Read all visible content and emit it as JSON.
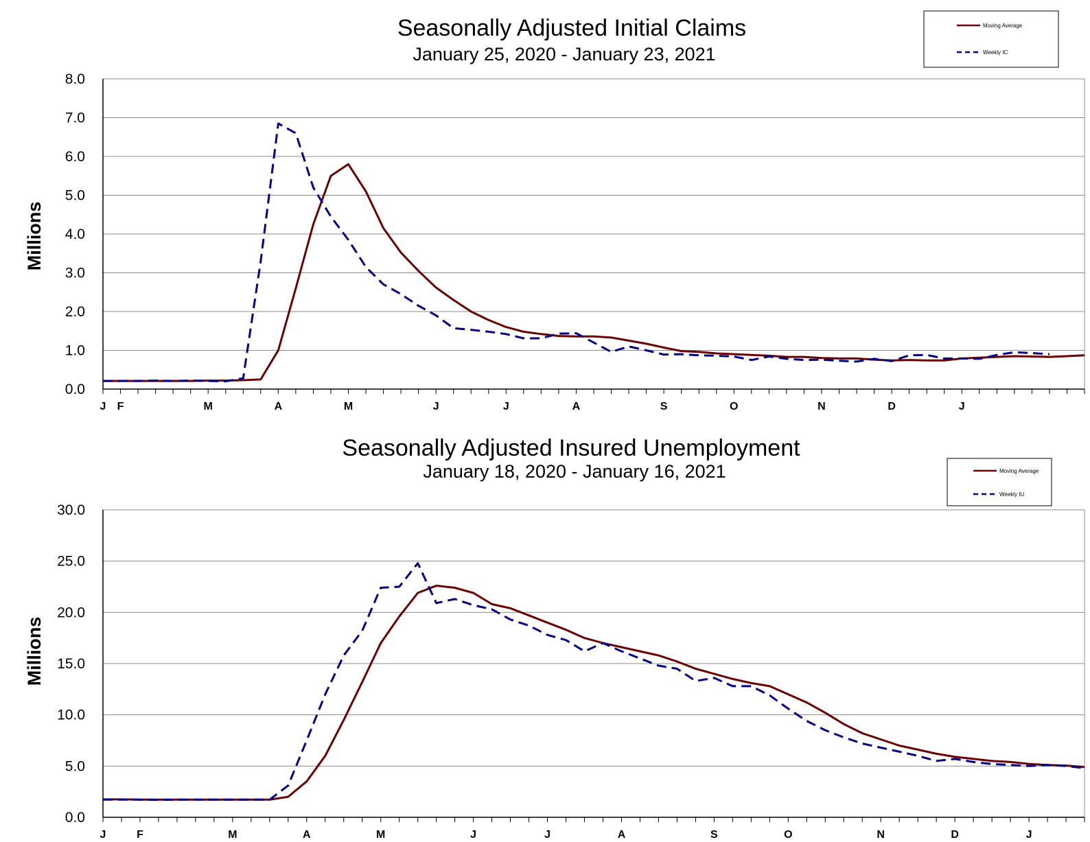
{
  "chart_data": [
    {
      "type": "line",
      "title": "Seasonally Adjusted Initial Claims",
      "subtitle": "January 25, 2020 - January 23, 2021",
      "ylabel": "Millions",
      "ylim": [
        0,
        8
      ],
      "yticks": [
        "0.0",
        "1.0",
        "2.0",
        "3.0",
        "4.0",
        "5.0",
        "6.0",
        "7.0",
        "8.0"
      ],
      "month_labels": [
        {
          "label": "J",
          "week": 0
        },
        {
          "label": "F",
          "week": 1
        },
        {
          "label": "M",
          "week": 6
        },
        {
          "label": "A",
          "week": 10
        },
        {
          "label": "M",
          "week": 14
        },
        {
          "label": "J",
          "week": 19
        },
        {
          "label": "J",
          "week": 23
        },
        {
          "label": "A",
          "week": 27
        },
        {
          "label": "S",
          "week": 32
        },
        {
          "label": "O",
          "week": 36
        },
        {
          "label": "N",
          "week": 41
        },
        {
          "label": "D",
          "week": 45
        },
        {
          "label": "J",
          "week": 49
        }
      ],
      "grid": true,
      "legend_position": "top-right",
      "series": [
        {
          "name": "Moving Average",
          "color": "#6b0000",
          "style": "solid",
          "values": [
            0.21,
            0.21,
            0.21,
            0.21,
            0.21,
            0.21,
            0.22,
            0.22,
            0.23,
            0.25,
            1.0,
            2.6,
            4.25,
            5.5,
            5.8,
            5.1,
            4.15,
            3.52,
            3.05,
            2.62,
            2.3,
            2.0,
            1.78,
            1.6,
            1.48,
            1.42,
            1.37,
            1.36,
            1.36,
            1.33,
            1.25,
            1.17,
            1.07,
            0.98,
            0.96,
            0.92,
            0.9,
            0.88,
            0.86,
            0.83,
            0.83,
            0.8,
            0.79,
            0.79,
            0.76,
            0.74,
            0.75,
            0.74,
            0.74,
            0.79,
            0.81,
            0.83,
            0.85,
            0.84,
            0.83,
            0.85,
            0.87
          ]
        },
        {
          "name": "Weekly IC",
          "color": "#00008b",
          "style": "dashed",
          "values": [
            0.21,
            0.21,
            0.21,
            0.22,
            0.21,
            0.22,
            0.21,
            0.2,
            0.28,
            3.3,
            6.85,
            6.6,
            5.2,
            4.45,
            3.85,
            3.15,
            2.7,
            2.45,
            2.15,
            1.9,
            1.57,
            1.53,
            1.48,
            1.42,
            1.31,
            1.31,
            1.43,
            1.44,
            1.2,
            0.96,
            1.1,
            1.0,
            0.89,
            0.9,
            0.87,
            0.86,
            0.84,
            0.75,
            0.84,
            0.78,
            0.75,
            0.76,
            0.73,
            0.71,
            0.78,
            0.72,
            0.87,
            0.88,
            0.79,
            0.79,
            0.78,
            0.88,
            0.95,
            0.93,
            0.9
          ]
        }
      ]
    },
    {
      "type": "line",
      "title": "Seasonally Adjusted Insured Unemployment",
      "subtitle": "January 18, 2020 - January 16, 2021",
      "ylabel": "Millions",
      "ylim": [
        0,
        30
      ],
      "yticks": [
        "0.0",
        "5.0",
        "10.0",
        "15.0",
        "20.0",
        "25.0",
        "30.0"
      ],
      "month_labels": [
        {
          "label": "J",
          "week": 0
        },
        {
          "label": "F",
          "week": 2
        },
        {
          "label": "M",
          "week": 7
        },
        {
          "label": "A",
          "week": 11
        },
        {
          "label": "M",
          "week": 15
        },
        {
          "label": "J",
          "week": 20
        },
        {
          "label": "J",
          "week": 24
        },
        {
          "label": "A",
          "week": 28
        },
        {
          "label": "S",
          "week": 33
        },
        {
          "label": "O",
          "week": 37
        },
        {
          "label": "N",
          "week": 42
        },
        {
          "label": "D",
          "week": 46
        },
        {
          "label": "J",
          "week": 50
        }
      ],
      "grid": true,
      "legend_position": "top-right",
      "series": [
        {
          "name": "Moving Average",
          "color": "#6b0000",
          "style": "solid",
          "values": [
            1.75,
            1.75,
            1.72,
            1.72,
            1.72,
            1.72,
            1.72,
            1.72,
            1.72,
            1.72,
            2.0,
            3.5,
            6.0,
            9.5,
            13.2,
            17.0,
            19.6,
            21.9,
            22.6,
            22.4,
            21.9,
            20.8,
            20.4,
            19.7,
            19.0,
            18.3,
            17.5,
            17.0,
            16.6,
            16.2,
            15.8,
            15.2,
            14.5,
            14.0,
            13.5,
            13.1,
            12.8,
            12.0,
            11.2,
            10.2,
            9.1,
            8.2,
            7.6,
            7.0,
            6.6,
            6.2,
            5.9,
            5.7,
            5.5,
            5.4,
            5.2,
            5.1,
            5.05,
            4.9
          ]
        },
        {
          "name": "Weekly IU",
          "color": "#00008b",
          "style": "dashed",
          "values": [
            1.72,
            1.72,
            1.72,
            1.7,
            1.72,
            1.72,
            1.72,
            1.72,
            1.72,
            1.72,
            3.1,
            7.5,
            12.0,
            15.8,
            18.2,
            22.4,
            22.5,
            24.8,
            20.9,
            21.3,
            20.7,
            20.3,
            19.3,
            18.7,
            17.8,
            17.3,
            16.2,
            17.0,
            16.2,
            15.5,
            14.8,
            14.5,
            13.3,
            13.6,
            12.8,
            12.8,
            11.9,
            10.6,
            9.4,
            8.5,
            7.8,
            7.2,
            6.8,
            6.4,
            6.0,
            5.5,
            5.7,
            5.4,
            5.2,
            5.1,
            5.0,
            5.1,
            5.0,
            4.8
          ]
        }
      ]
    }
  ]
}
